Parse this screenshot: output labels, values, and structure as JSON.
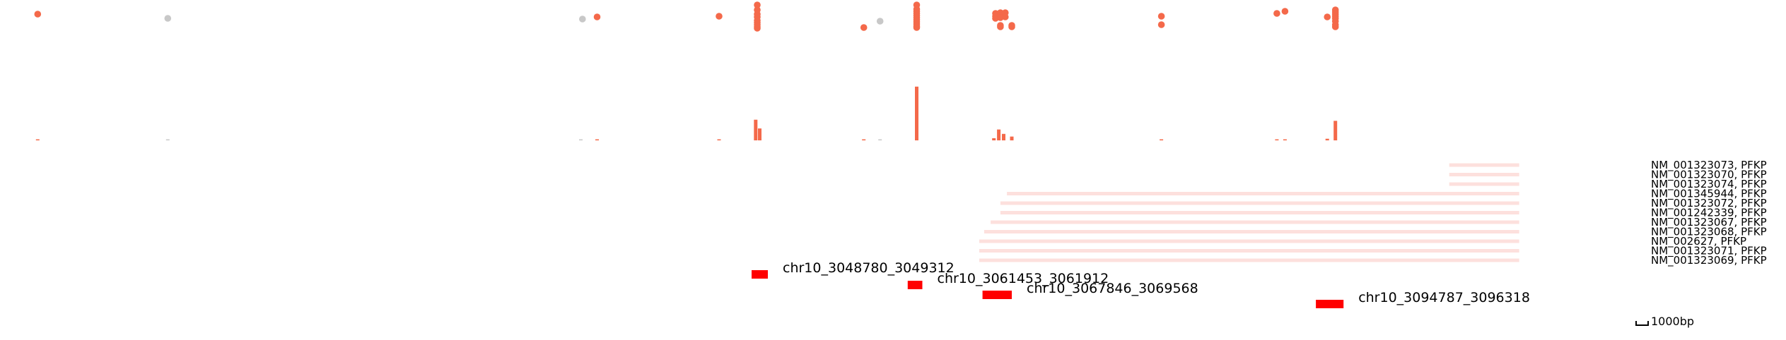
{
  "colors": {
    "significant": "#f4694a",
    "nonsignificant": "#c8c8c8",
    "transcript": "#fde0dd",
    "peak": "#ff0000",
    "text": "#000000"
  },
  "chart_data": {
    "type": "genome-track",
    "region_bp": [
      3000000,
      3100000
    ],
    "scale_bar": {
      "length_bp": 1000,
      "label": "1000bp"
    },
    "scatter": {
      "ylim": [
        0,
        1
      ],
      "points": [
        {
          "x": 3002100,
          "y": 0.8,
          "sig": true
        },
        {
          "x": 3010100,
          "y": 0.74,
          "sig": false
        },
        {
          "x": 3035600,
          "y": 0.73,
          "sig": false
        },
        {
          "x": 3036500,
          "y": 0.76,
          "sig": true
        },
        {
          "x": 3044000,
          "y": 0.77,
          "sig": true
        },
        {
          "x": 3046350,
          "y": 0.93,
          "sig": true
        },
        {
          "x": 3046350,
          "y": 0.86,
          "sig": true
        },
        {
          "x": 3046350,
          "y": 0.8,
          "sig": true
        },
        {
          "x": 3046350,
          "y": 0.76,
          "sig": true
        },
        {
          "x": 3046350,
          "y": 0.71,
          "sig": true
        },
        {
          "x": 3046350,
          "y": 0.68,
          "sig": true
        },
        {
          "x": 3046350,
          "y": 0.65,
          "sig": true
        },
        {
          "x": 3046350,
          "y": 0.62,
          "sig": true
        },
        {
          "x": 3046350,
          "y": 0.6,
          "sig": true
        },
        {
          "x": 3052900,
          "y": 0.61,
          "sig": true
        },
        {
          "x": 3053900,
          "y": 0.7,
          "sig": false
        },
        {
          "x": 3056150,
          "y": 0.93,
          "sig": true
        },
        {
          "x": 3056150,
          "y": 0.87,
          "sig": true
        },
        {
          "x": 3056150,
          "y": 0.84,
          "sig": true
        },
        {
          "x": 3056150,
          "y": 0.81,
          "sig": true
        },
        {
          "x": 3056150,
          "y": 0.78,
          "sig": true
        },
        {
          "x": 3056150,
          "y": 0.75,
          "sig": true
        },
        {
          "x": 3056150,
          "y": 0.72,
          "sig": true
        },
        {
          "x": 3056150,
          "y": 0.69,
          "sig": true
        },
        {
          "x": 3056150,
          "y": 0.66,
          "sig": true
        },
        {
          "x": 3056150,
          "y": 0.63,
          "sig": true
        },
        {
          "x": 3056150,
          "y": 0.61,
          "sig": true
        },
        {
          "x": 3061000,
          "y": 0.81,
          "sig": true
        },
        {
          "x": 3061000,
          "y": 0.77,
          "sig": true
        },
        {
          "x": 3061000,
          "y": 0.74,
          "sig": true
        },
        {
          "x": 3061300,
          "y": 0.82,
          "sig": true
        },
        {
          "x": 3061300,
          "y": 0.78,
          "sig": true
        },
        {
          "x": 3061300,
          "y": 0.75,
          "sig": true
        },
        {
          "x": 3061300,
          "y": 0.64,
          "sig": true
        },
        {
          "x": 3061300,
          "y": 0.62,
          "sig": true
        },
        {
          "x": 3061600,
          "y": 0.82,
          "sig": true
        },
        {
          "x": 3061600,
          "y": 0.76,
          "sig": true
        },
        {
          "x": 3062000,
          "y": 0.64,
          "sig": true
        },
        {
          "x": 3062000,
          "y": 0.62,
          "sig": true
        },
        {
          "x": 3071200,
          "y": 0.77,
          "sig": true
        },
        {
          "x": 3071200,
          "y": 0.65,
          "sig": true
        },
        {
          "x": 3078300,
          "y": 0.81,
          "sig": true
        },
        {
          "x": 3078800,
          "y": 0.84,
          "sig": true
        },
        {
          "x": 3081400,
          "y": 0.76,
          "sig": true
        },
        {
          "x": 3081900,
          "y": 0.86,
          "sig": true
        },
        {
          "x": 3081900,
          "y": 0.83,
          "sig": true
        },
        {
          "x": 3081900,
          "y": 0.8,
          "sig": true
        },
        {
          "x": 3081900,
          "y": 0.77,
          "sig": true
        },
        {
          "x": 3081900,
          "y": 0.74,
          "sig": true
        },
        {
          "x": 3081900,
          "y": 0.7,
          "sig": true
        },
        {
          "x": 3081900,
          "y": 0.65,
          "sig": true
        },
        {
          "x": 3081900,
          "y": 0.62,
          "sig": true
        }
      ]
    },
    "bars": {
      "ylim": [
        0,
        1
      ],
      "values": [
        {
          "x": 3002100,
          "y": 0.02
        },
        {
          "x": 3010100,
          "y": 0.01,
          "sig": false
        },
        {
          "x": 3035500,
          "y": 0.01,
          "sig": false
        },
        {
          "x": 3036500,
          "y": 0.02
        },
        {
          "x": 3044000,
          "y": 0.02
        },
        {
          "x": 3046250,
          "y": 0.38
        },
        {
          "x": 3046500,
          "y": 0.22
        },
        {
          "x": 3052900,
          "y": 0.02
        },
        {
          "x": 3053900,
          "y": 0.01,
          "sig": false
        },
        {
          "x": 3056150,
          "y": 0.99
        },
        {
          "x": 3060900,
          "y": 0.04
        },
        {
          "x": 3061200,
          "y": 0.2
        },
        {
          "x": 3061500,
          "y": 0.12
        },
        {
          "x": 3062000,
          "y": 0.07
        },
        {
          "x": 3071200,
          "y": 0.02
        },
        {
          "x": 3078300,
          "y": 0.02
        },
        {
          "x": 3078800,
          "y": 0.02
        },
        {
          "x": 3081400,
          "y": 0.03
        },
        {
          "x": 3081900,
          "y": 0.36
        }
      ]
    },
    "transcripts": [
      {
        "name": "NM_001323073, PFKP",
        "start": 3088900,
        "end": 3093200
      },
      {
        "name": "NM_001323070, PFKP",
        "start": 3088900,
        "end": 3093200
      },
      {
        "name": "NM_001323074, PFKP",
        "start": 3088900,
        "end": 3093200
      },
      {
        "name": "NM_001345944, PFKP",
        "start": 3061700,
        "end": 3093200
      },
      {
        "name": "NM_001323072, PFKP",
        "start": 3061300,
        "end": 3093200
      },
      {
        "name": "NM_001242339, PFKP",
        "start": 3061300,
        "end": 3093200
      },
      {
        "name": "NM_001323067, PFKP",
        "start": 3060700,
        "end": 3093200
      },
      {
        "name": "NM_001323068, PFKP",
        "start": 3060300,
        "end": 3093200
      },
      {
        "name": "NM_002627, PFKP",
        "start": 3060000,
        "end": 3093200
      },
      {
        "name": "NM_001323071, PFKP",
        "start": 3060000,
        "end": 3093200
      },
      {
        "name": "NM_001323069, PFKP",
        "start": 3060000,
        "end": 3093200
      }
    ],
    "peaks": [
      {
        "label": "chr10_3048780_3049312",
        "start": 3046000,
        "end": 3047000,
        "row": 0
      },
      {
        "label": "chr10_3061453_3061912",
        "start": 3055600,
        "end": 3056500,
        "row": 1
      },
      {
        "label": "chr10_3067846_3069568",
        "start": 3060200,
        "end": 3062000,
        "row": 2
      },
      {
        "label": "chr10_3094787_3096318",
        "start": 3080700,
        "end": 3082400,
        "row": 3
      }
    ]
  }
}
